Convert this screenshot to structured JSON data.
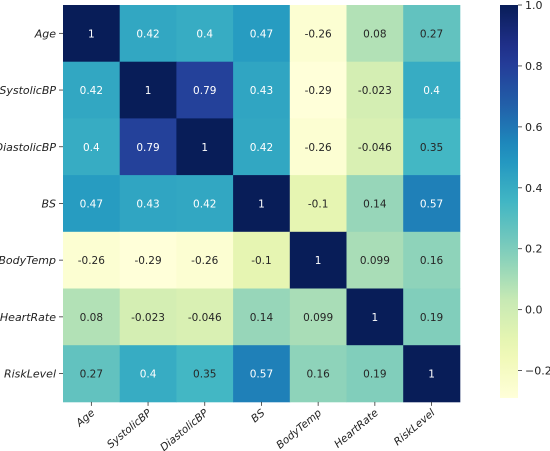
{
  "chart_data": {
    "type": "heatmap",
    "title": "",
    "xlabel": "",
    "ylabel": "",
    "row_labels": [
      "Age",
      "SystolicBP",
      "DiastolicBP",
      "BS",
      "BodyTemp",
      "HeartRate",
      "RiskLevel"
    ],
    "col_labels": [
      "Age",
      "SystolicBP",
      "DiastolicBP",
      "BS",
      "BodyTemp",
      "HeartRate",
      "RiskLevel"
    ],
    "values": [
      [
        1,
        0.42,
        0.4,
        0.47,
        -0.26,
        0.08,
        0.27
      ],
      [
        0.42,
        1,
        0.79,
        0.43,
        -0.29,
        -0.023,
        0.4
      ],
      [
        0.4,
        0.79,
        1,
        0.42,
        -0.26,
        -0.046,
        0.35
      ],
      [
        0.47,
        0.43,
        0.42,
        1,
        -0.1,
        0.14,
        0.57
      ],
      [
        -0.26,
        -0.29,
        -0.26,
        -0.1,
        1,
        0.099,
        0.16
      ],
      [
        0.08,
        -0.023,
        -0.046,
        0.14,
        0.099,
        1,
        0.19
      ],
      [
        0.27,
        0.4,
        0.35,
        0.57,
        0.16,
        0.19,
        1
      ]
    ],
    "value_labels": [
      [
        "1",
        "0.42",
        "0.4",
        "0.47",
        "-0.26",
        "0.08",
        "0.27"
      ],
      [
        "0.42",
        "1",
        "0.79",
        "0.43",
        "-0.29",
        "-0.023",
        "0.4"
      ],
      [
        "0.4",
        "0.79",
        "1",
        "0.42",
        "-0.26",
        "-0.046",
        "0.35"
      ],
      [
        "0.47",
        "0.43",
        "0.42",
        "1",
        "-0.1",
        "0.14",
        "0.57"
      ],
      [
        "-0.26",
        "-0.29",
        "-0.26",
        "-0.1",
        "1",
        "0.099",
        "0.16"
      ],
      [
        "0.08",
        "-0.023",
        "-0.046",
        "0.14",
        "0.099",
        "1",
        "0.19"
      ],
      [
        "0.27",
        "0.4",
        "0.35",
        "0.57",
        "0.16",
        "0.19",
        "1"
      ]
    ],
    "colormap": "YlGnBu",
    "vmin": -0.29,
    "vmax": 1,
    "colorbar": {
      "ticks": [
        1.0,
        0.8,
        0.6,
        0.4,
        0.2,
        0.0,
        -0.2
      ],
      "tick_labels": [
        "1.0",
        "0.8",
        "0.6",
        "0.4",
        "0.2",
        "0.0",
        "−0.2"
      ]
    }
  }
}
